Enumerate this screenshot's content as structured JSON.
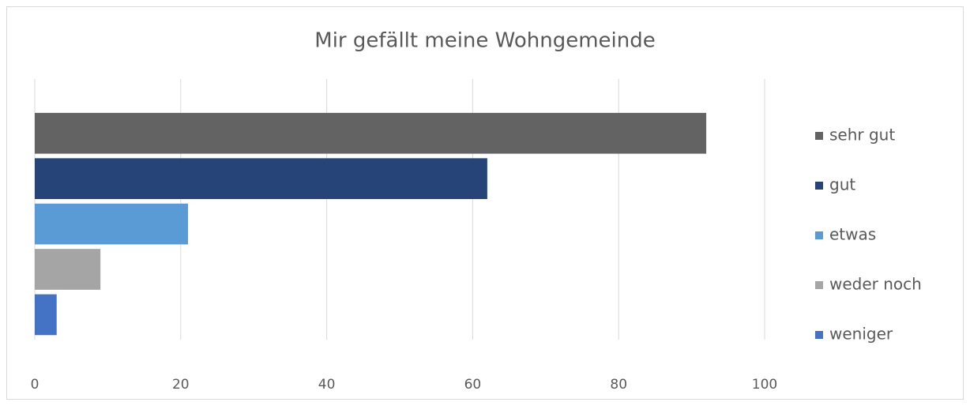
{
  "chart_data": {
    "type": "bar",
    "orientation": "horizontal",
    "title": "Mir gefällt meine Wohngemeinde",
    "categories": [
      null
    ],
    "series": [
      {
        "name": "sehr gut",
        "color": "#636363",
        "values": [
          92
        ]
      },
      {
        "name": "gut",
        "color": "#264478",
        "values": [
          62
        ]
      },
      {
        "name": "etwas",
        "color": "#5b9bd5",
        "values": [
          21
        ]
      },
      {
        "name": "weder noch",
        "color": "#a5a5a5",
        "values": [
          9
        ]
      },
      {
        "name": "weniger",
        "color": "#4472c4",
        "values": [
          3
        ]
      }
    ],
    "xlim": [
      0,
      100
    ],
    "xticks": [
      0,
      20,
      40,
      60,
      80,
      100
    ],
    "grid": true,
    "legend": "right"
  }
}
